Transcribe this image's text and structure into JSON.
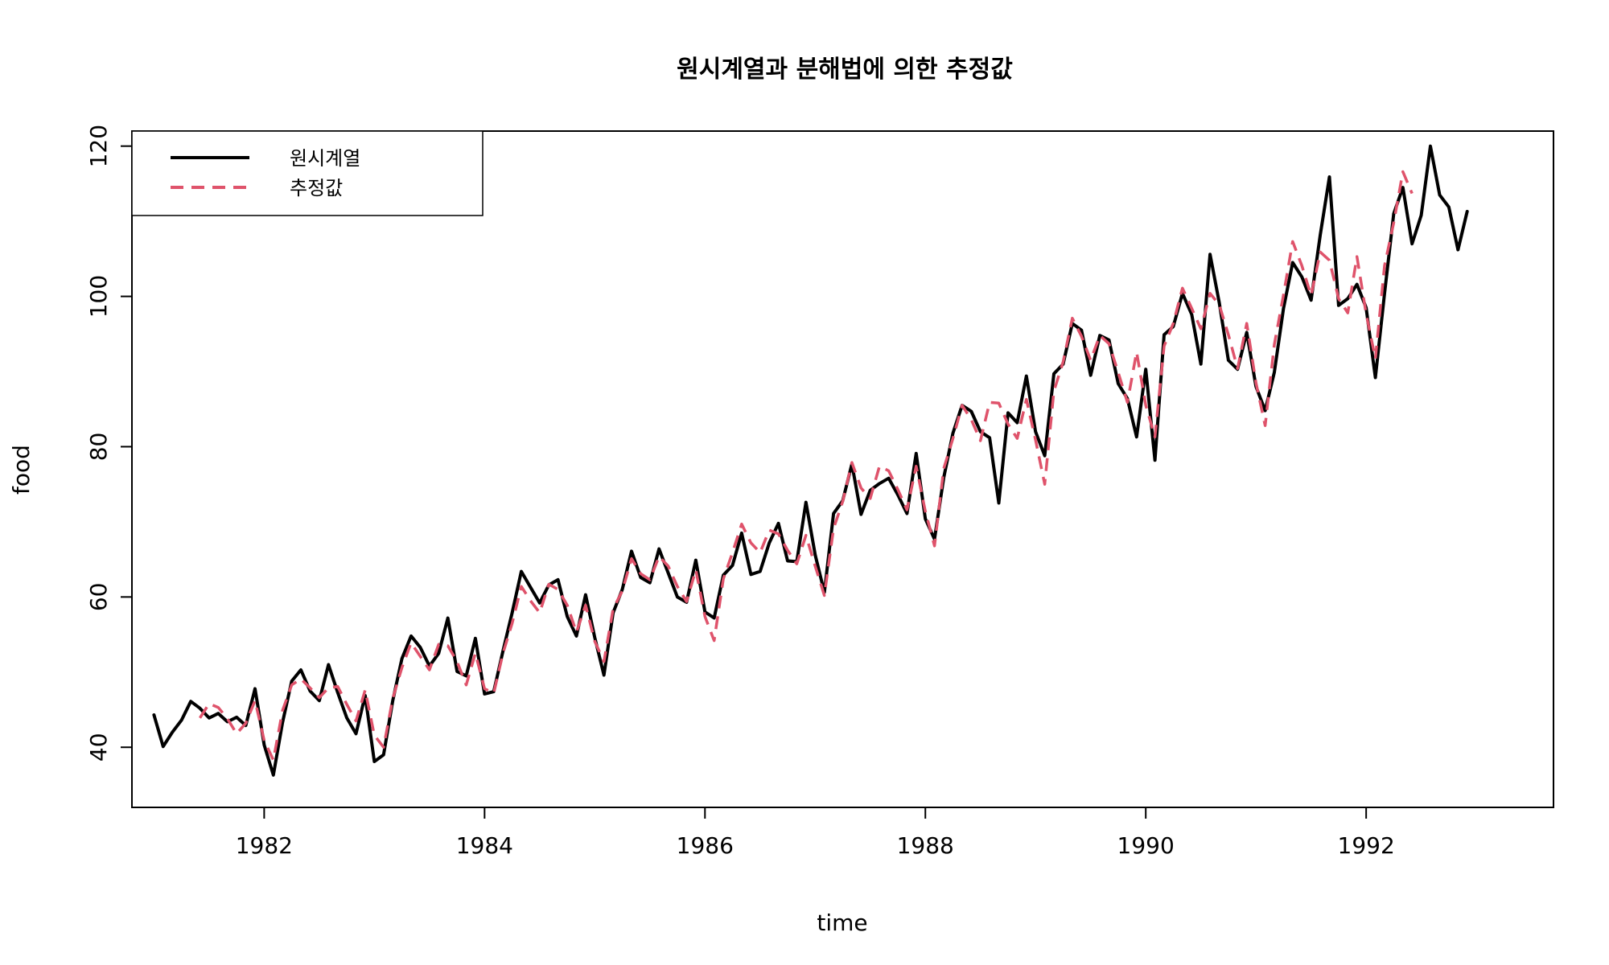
{
  "chart_data": {
    "type": "line",
    "title": "원시계열과 분해법에 의한 추정값",
    "xlabel": "time",
    "ylabel": "food",
    "xlim": [
      1980.8,
      1993.7
    ],
    "ylim": [
      32,
      122
    ],
    "x_ticks": [
      1982,
      1984,
      1986,
      1988,
      1990,
      1992
    ],
    "x_tick_labels": [
      "1982",
      "1984",
      "1986",
      "1988",
      "1990",
      "1992"
    ],
    "y_ticks": [
      40,
      60,
      80,
      100,
      120
    ],
    "y_tick_labels": [
      "40",
      "60",
      "80",
      "100",
      "120"
    ],
    "grid": false,
    "legend_position": "top-left",
    "legend": [
      {
        "label": "원시계열",
        "color": "#000000",
        "dash": "solid"
      },
      {
        "label": "추정값",
        "color": "#DF536B",
        "dash": "dashed"
      }
    ],
    "x_start": 1981.0,
    "x_step": 0.0833333,
    "series": [
      {
        "name": "원시계열",
        "color": "#000000",
        "style": "solid",
        "values": [
          44.3,
          40.1,
          42.0,
          43.6,
          46.1,
          45.2,
          43.9,
          44.5,
          43.4,
          44.0,
          42.9,
          47.8,
          40.3,
          36.3,
          43.3,
          48.8,
          50.3,
          47.5,
          46.2,
          51.0,
          47.3,
          43.9,
          41.8,
          46.9,
          38.1,
          39.0,
          46.2,
          51.8,
          54.8,
          53.3,
          50.8,
          52.5,
          57.2,
          50.1,
          49.5,
          54.5,
          47.1,
          47.4,
          52.8,
          57.9,
          63.4,
          61.3,
          59.2,
          61.6,
          62.3,
          57.4,
          54.8,
          60.3,
          54.6,
          49.6,
          57.9,
          61.0,
          66.1,
          62.6,
          61.9,
          66.4,
          63.2,
          60.0,
          59.3,
          64.9,
          58.0,
          57.2,
          62.9,
          64.2,
          68.5,
          63.0,
          63.4,
          67.2,
          69.8,
          64.8,
          64.7,
          72.6,
          65.6,
          60.6,
          71.1,
          72.8,
          77.7,
          71.0,
          74.2,
          75.1,
          75.8,
          73.6,
          71.1,
          79.1,
          70.4,
          67.7,
          75.9,
          81.8,
          85.5,
          84.7,
          82.0,
          81.2,
          72.5,
          84.5,
          83.2,
          89.4,
          82.0,
          78.8,
          89.7,
          91.0,
          96.4,
          95.5,
          89.5,
          94.8,
          94.2,
          88.4,
          86.4,
          81.3,
          90.3,
          78.2,
          94.9,
          96.0,
          100.4,
          97.6,
          91.0,
          105.6,
          99.2,
          91.5,
          90.3,
          95.2,
          88.0,
          84.8,
          89.9,
          98.4,
          104.5,
          102.6,
          99.5,
          108.2,
          115.9,
          98.8,
          99.7,
          101.6,
          98.5,
          89.2,
          100.4,
          111.0,
          114.5,
          107.0,
          110.8,
          120.0,
          113.5,
          111.9,
          106.2,
          111.3
        ]
      },
      {
        "name": "추정값",
        "color": "#DF536B",
        "style": "dashed",
        "values": [
          null,
          null,
          null,
          null,
          null,
          43.9,
          45.8,
          45.3,
          43.8,
          41.8,
          43.2,
          46.2,
          40.9,
          38.3,
          44.9,
          48.3,
          49.1,
          47.9,
          46.6,
          47.9,
          48.1,
          45.7,
          43.5,
          47.6,
          41.6,
          40.0,
          46.5,
          50.6,
          53.9,
          52.1,
          50.3,
          53.7,
          53.5,
          51.4,
          48.3,
          52.5,
          47.8,
          47.2,
          52.5,
          56.5,
          61.4,
          59.5,
          57.9,
          61.7,
          61.0,
          58.9,
          55.3,
          58.9,
          54.1,
          51.4,
          58.4,
          60.8,
          65.1,
          63.1,
          62.3,
          65.4,
          64.1,
          61.4,
          59.4,
          63.6,
          57.4,
          54.2,
          62.4,
          65.9,
          69.7,
          67.2,
          65.9,
          68.9,
          68.4,
          66.2,
          64.4,
          68.2,
          64.1,
          60.2,
          69.1,
          72.7,
          77.9,
          74.5,
          73.1,
          77.4,
          76.8,
          74.3,
          71.6,
          77.4,
          71.4,
          66.8,
          77.1,
          81.1,
          85.5,
          83.6,
          80.8,
          85.9,
          85.8,
          83.0,
          81.1,
          86.3,
          80.9,
          75.0,
          87.4,
          91.3,
          97.1,
          94.7,
          91.5,
          94.8,
          93.7,
          89.9,
          85.9,
          92.6,
          85.5,
          81.3,
          93.4,
          96.4,
          101.1,
          98.4,
          95.7,
          100.4,
          98.9,
          94.9,
          90.4,
          96.4,
          88.5,
          82.8,
          93.6,
          100.2,
          107.3,
          104.1,
          100.1,
          105.9,
          104.8,
          99.7,
          97.8,
          105.3,
          97.7,
          91.7,
          104.1,
          109.8,
          116.6,
          113.7,
          null,
          null,
          null,
          null,
          null,
          null
        ]
      }
    ]
  }
}
